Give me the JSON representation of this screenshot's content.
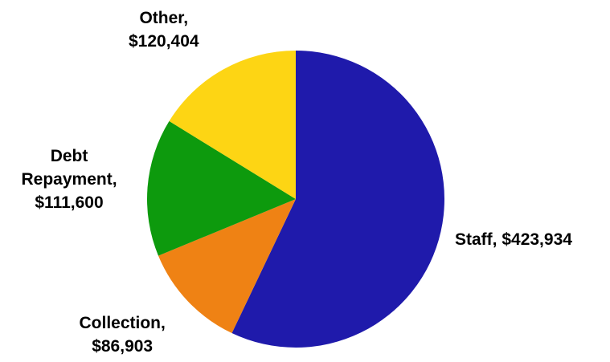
{
  "chart_data": {
    "type": "pie",
    "title": "",
    "start_angle_deg": 0,
    "direction": "clockwise",
    "slices": [
      {
        "name": "Staff",
        "value": 423934,
        "label_lines": [
          "Staff, $423,934"
        ],
        "color": "#1f1aab"
      },
      {
        "name": "Collection",
        "value": 86903,
        "label_lines": [
          "Collection,",
          "$86,903"
        ],
        "color": "#ef8214"
      },
      {
        "name": "Debt Repayment",
        "value": 111600,
        "label_lines": [
          "Debt",
          "Repayment,",
          "$111,600"
        ],
        "color": "#0d9a0d"
      },
      {
        "name": "Other",
        "value": 120404,
        "label_lines": [
          "Other,",
          "$120,404"
        ],
        "color": "#fdd514"
      }
    ]
  }
}
